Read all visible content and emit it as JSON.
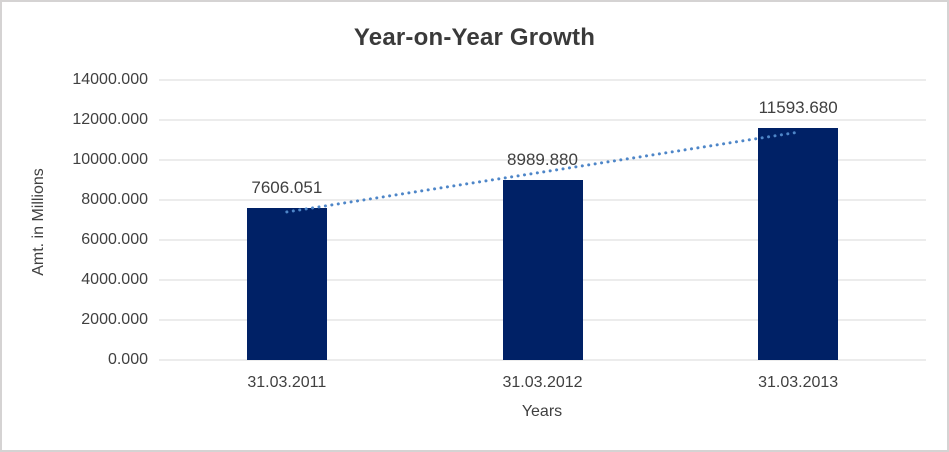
{
  "chart_data": {
    "type": "bar",
    "title": "Year-on-Year Growth",
    "xlabel": "Years",
    "ylabel": "Amt. in Millions",
    "categories": [
      "31.03.2011",
      "31.03.2012",
      "31.03.2013"
    ],
    "values": [
      7606.051,
      8989.88,
      11593.68
    ],
    "data_labels": [
      "7606.051",
      "8989.880",
      "11593.680"
    ],
    "y_ticks": [
      {
        "value": 0,
        "label": "0.000"
      },
      {
        "value": 2000,
        "label": "2000.000"
      },
      {
        "value": 4000,
        "label": "4000.000"
      },
      {
        "value": 6000,
        "label": "6000.000"
      },
      {
        "value": 8000,
        "label": "8000.000"
      },
      {
        "value": 10000,
        "label": "10000.000"
      },
      {
        "value": 12000,
        "label": "12000.000"
      },
      {
        "value": 14000,
        "label": "14000.000"
      }
    ],
    "ylim": [
      0,
      14000
    ],
    "grid": "horizontal",
    "legend": "none",
    "trendline": {
      "type": "linear",
      "style": "dotted"
    },
    "colors": {
      "bar": "#002166",
      "trendline": "#4e86c8",
      "gridline": "#d9d9d9",
      "axis_text": "#404040",
      "title_text": "#3a3a3a",
      "border": "#d5d3d3",
      "background": "#ffffff"
    }
  }
}
